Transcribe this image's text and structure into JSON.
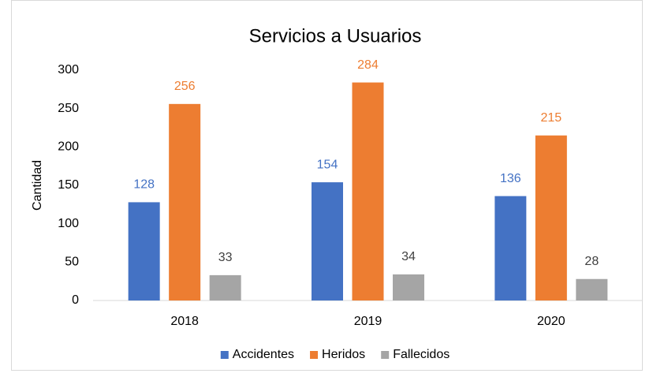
{
  "chart_data": {
    "type": "bar",
    "title": "Servicios a Usuarios",
    "y_label": "Cantidad",
    "categories": [
      "2018",
      "2019",
      "2020"
    ],
    "series": [
      {
        "name": "Accidentes",
        "color": "#4472c4",
        "values": [
          128,
          154,
          136
        ]
      },
      {
        "name": "Heridos",
        "color": "#ed7d31",
        "values": [
          256,
          284,
          215
        ]
      },
      {
        "name": "Fallecidos",
        "color": "#a5a5a5",
        "values": [
          33,
          34,
          28
        ]
      }
    ],
    "ylim": [
      0,
      300
    ],
    "yticks": [
      0,
      50,
      100,
      150,
      200,
      250,
      300
    ],
    "grid": false,
    "legend": "bottom"
  }
}
